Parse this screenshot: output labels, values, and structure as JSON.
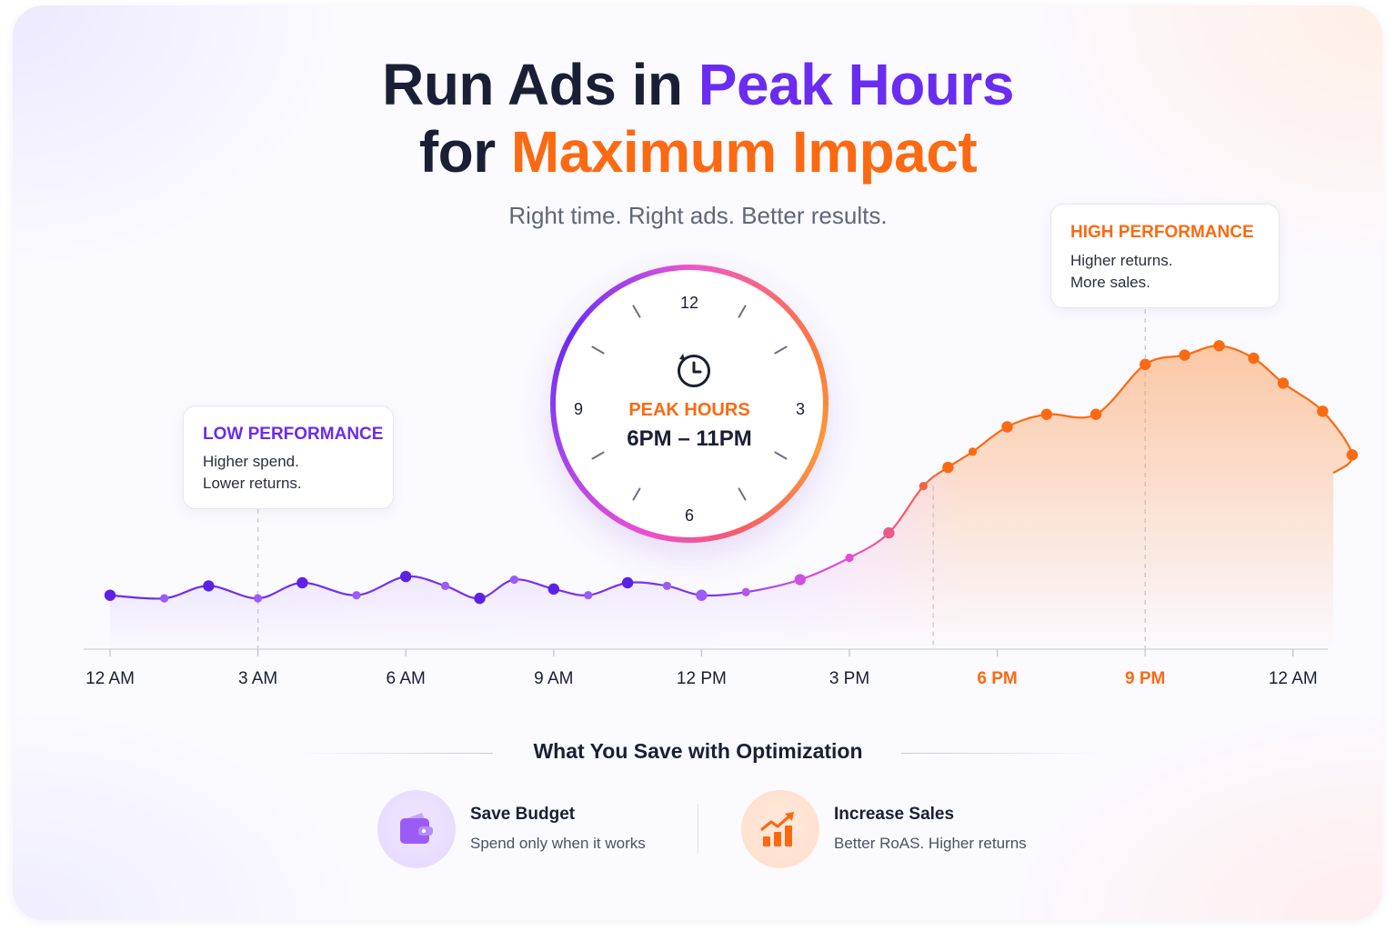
{
  "headline": {
    "line1_prefix": "Run Ads in ",
    "line1_highlight": "Peak Hours",
    "line2_prefix": "for ",
    "line2_highlight": "Maximum Impact"
  },
  "subtitle": "Right time. Right ads. Better results.",
  "clock": {
    "numbers": [
      "12",
      "3",
      "6",
      "9"
    ],
    "label": "PEAK HOURS",
    "range": "6PM – 11PM",
    "icon": "clock-icon"
  },
  "callouts": {
    "low": {
      "title": "LOW PERFORMANCE",
      "line1": "Higher spend.",
      "line2": "Lower returns."
    },
    "high": {
      "title": "HIGH PERFORMANCE",
      "line1": "Higher returns.",
      "line2": "More sales."
    }
  },
  "chart_data": {
    "type": "line",
    "x_ticks": [
      "12 AM",
      "3 AM",
      "6 AM",
      "9 AM",
      "12 PM",
      "3 PM",
      "6 PM",
      "9 PM",
      "12 AM"
    ],
    "highlighted_ticks": [
      "6 PM",
      "9 PM"
    ],
    "x_range": [
      -0.2,
      25.4
    ],
    "y_range": [
      0,
      100
    ],
    "yaxis_shown": false,
    "x": [
      0,
      1.1,
      2,
      3,
      3.9,
      5,
      6,
      6.8,
      7.5,
      8.2,
      9,
      9.7,
      10.5,
      11.3,
      12,
      12.9,
      14,
      15,
      15.8,
      16.5,
      17,
      17.5,
      18.2,
      19,
      20,
      21,
      21.8,
      22.5,
      23.2,
      23.8,
      24.6,
      25.2
    ],
    "y": [
      17,
      16,
      20,
      16,
      21,
      17,
      23,
      20,
      16,
      22,
      19,
      17,
      21,
      20,
      17,
      18,
      22,
      29,
      37,
      52,
      58,
      63,
      71,
      75,
      75,
      91,
      94,
      97,
      93,
      85,
      76,
      62
    ],
    "peak_range": [
      18,
      23
    ],
    "marker_guides_x": [
      3,
      16.7,
      21
    ],
    "colors": {
      "low": "#6a2cf0",
      "mid": "#e24fd6",
      "high": "#fb6a12"
    }
  },
  "savings": {
    "heading": "What You Save with Optimization",
    "items": [
      {
        "title": "Save Budget",
        "desc": "Spend only when it works",
        "icon": "wallet-icon",
        "color": "#9a5cf5"
      },
      {
        "title": "Increase Sales",
        "desc": "Better RoAS. Higher returns",
        "icon": "growth-chart-icon",
        "color": "#fb6a12"
      }
    ]
  }
}
